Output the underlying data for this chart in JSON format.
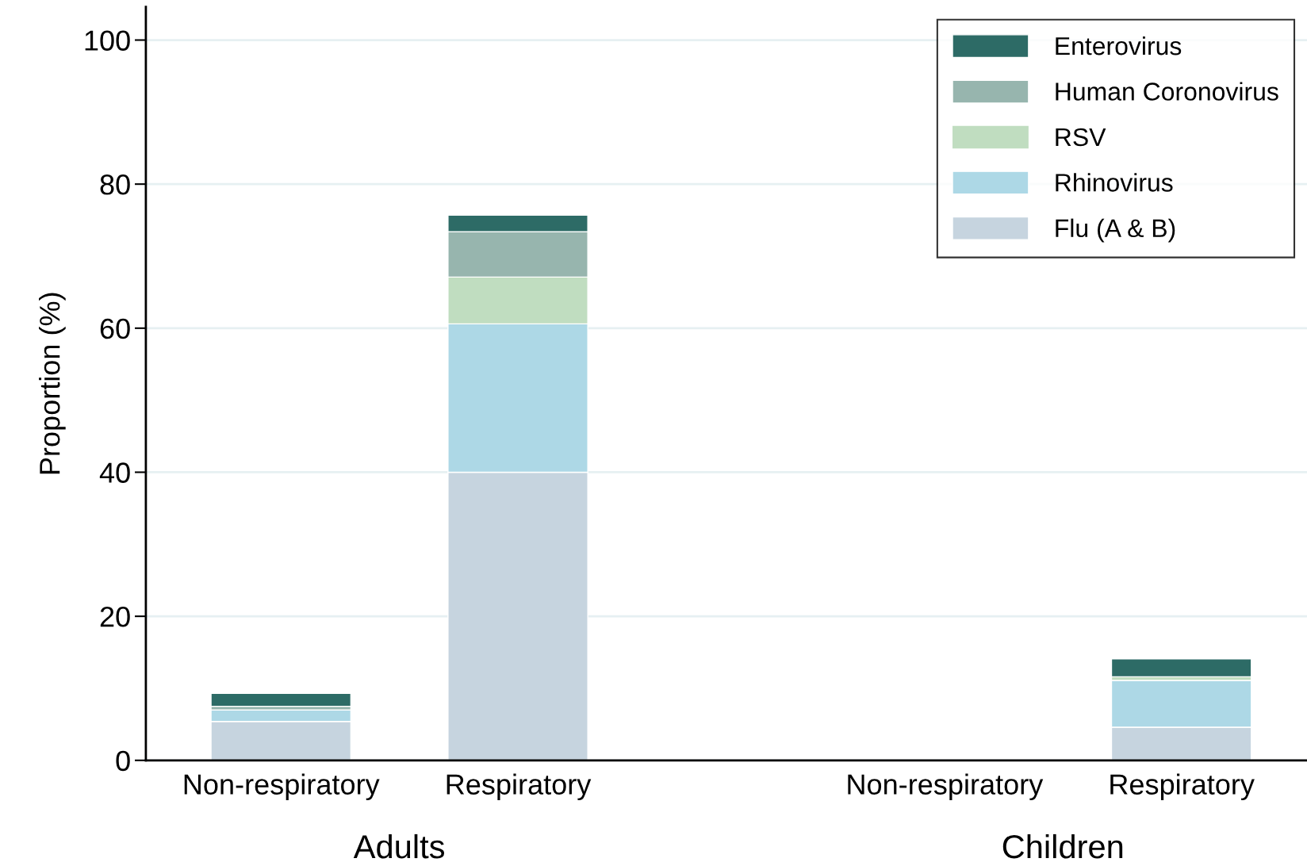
{
  "chart_data": {
    "type": "bar",
    "stacked": true,
    "ylabel": "Proportion (%)",
    "categories": [
      "Non-respiratory",
      "Respiratory",
      "Non-respiratory",
      "Respiratory"
    ],
    "annotations": [
      "Adults",
      "Children"
    ],
    "series": [
      {
        "name": "Flu (A & B)",
        "color": "#c6d4df",
        "values": [
          5.4,
          40.0,
          0,
          4.6
        ]
      },
      {
        "name": "Rhinovirus",
        "color": "#add8e6",
        "values": [
          1.6,
          20.6,
          0,
          6.5
        ]
      },
      {
        "name": "RSV",
        "color": "#c0ddc0",
        "values": [
          0,
          6.5,
          0,
          0.5
        ]
      },
      {
        "name": "Human Coronovirus",
        "color": "#97b5ae",
        "values": [
          0.5,
          6.3,
          0,
          0
        ]
      },
      {
        "name": "Enterovirus",
        "color": "#2d6b66",
        "values": [
          1.8,
          2.3,
          0,
          2.5
        ]
      }
    ],
    "ylim": [
      0,
      104.6
    ],
    "yticks": [
      0,
      20,
      40,
      60,
      80,
      100
    ],
    "grid": "y",
    "legend": "top right"
  }
}
